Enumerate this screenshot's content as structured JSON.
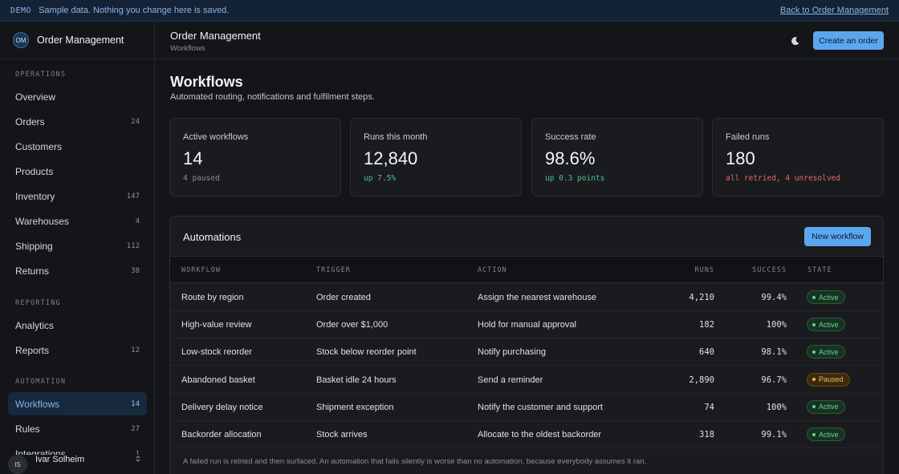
{
  "banner": {
    "tag": "DEMO",
    "message": "Sample data. Nothing you change here is saved.",
    "back_link": "Back to Order Management"
  },
  "brand": {
    "initials": "OM",
    "name": "Order Management"
  },
  "sidebar": {
    "sections": [
      {
        "label": "OPERATIONS"
      },
      {
        "label": "REPORTING"
      },
      {
        "label": "AUTOMATION"
      }
    ],
    "items": [
      {
        "label": "Overview",
        "count": ""
      },
      {
        "label": "Orders",
        "count": "24"
      },
      {
        "label": "Customers",
        "count": ""
      },
      {
        "label": "Products",
        "count": ""
      },
      {
        "label": "Inventory",
        "count": "147"
      },
      {
        "label": "Warehouses",
        "count": "4"
      },
      {
        "label": "Shipping",
        "count": "112"
      },
      {
        "label": "Returns",
        "count": "38"
      },
      {
        "label": "Analytics",
        "count": ""
      },
      {
        "label": "Reports",
        "count": "12"
      },
      {
        "label": "Workflows",
        "count": "14"
      },
      {
        "label": "Rules",
        "count": "27"
      },
      {
        "label": "Integrations",
        "count": "1"
      }
    ],
    "active_item": "Workflows"
  },
  "user": {
    "initials": "IS",
    "name": "Ivar Solheim"
  },
  "header": {
    "title": "Order Management",
    "breadcrumb": "Workflows",
    "theme_icon": "moon-icon",
    "create_label": "Create an order"
  },
  "page": {
    "title": "Workflows",
    "subtitle": "Automated routing, notifications and fulfilment steps."
  },
  "stats": [
    {
      "label": "Active workflows",
      "value": "14",
      "note": "4 paused",
      "tone": "neutral"
    },
    {
      "label": "Runs this month",
      "value": "12,840",
      "note": "up 7.5%",
      "tone": "up"
    },
    {
      "label": "Success rate",
      "value": "98.6%",
      "note": "up 0.3 points",
      "tone": "up"
    },
    {
      "label": "Failed runs",
      "value": "180",
      "note": "all retried, 4 unresolved",
      "tone": "bad"
    }
  ],
  "automations": {
    "title": "Automations",
    "new_label": "New workflow",
    "columns": [
      "WORKFLOW",
      "TRIGGER",
      "ACTION",
      "RUNS",
      "SUCCESS",
      "STATE"
    ],
    "rows": [
      {
        "workflow": "Route by region",
        "trigger": "Order created",
        "action": "Assign the nearest warehouse",
        "runs": "4,210",
        "success": "99.4%",
        "state": "Active"
      },
      {
        "workflow": "High-value review",
        "trigger": "Order over $1,000",
        "action": "Hold for manual approval",
        "runs": "182",
        "success": "100%",
        "state": "Active"
      },
      {
        "workflow": "Low-stock reorder",
        "trigger": "Stock below reorder point",
        "action": "Notify purchasing",
        "runs": "640",
        "success": "98.1%",
        "state": "Active"
      },
      {
        "workflow": "Abandoned basket",
        "trigger": "Basket idle 24 hours",
        "action": "Send a reminder",
        "runs": "2,890",
        "success": "96.7%",
        "state": "Paused"
      },
      {
        "workflow": "Delivery delay notice",
        "trigger": "Shipment exception",
        "action": "Notify the customer and support",
        "runs": "74",
        "success": "100%",
        "state": "Active"
      },
      {
        "workflow": "Backorder allocation",
        "trigger": "Stock arrives",
        "action": "Allocate to the oldest backorder",
        "runs": "318",
        "success": "99.1%",
        "state": "Active"
      }
    ],
    "footnote": "A failed run is retried and then surfaced. An automation that fails silently is worse than no automation, because everybody assumes it ran."
  }
}
